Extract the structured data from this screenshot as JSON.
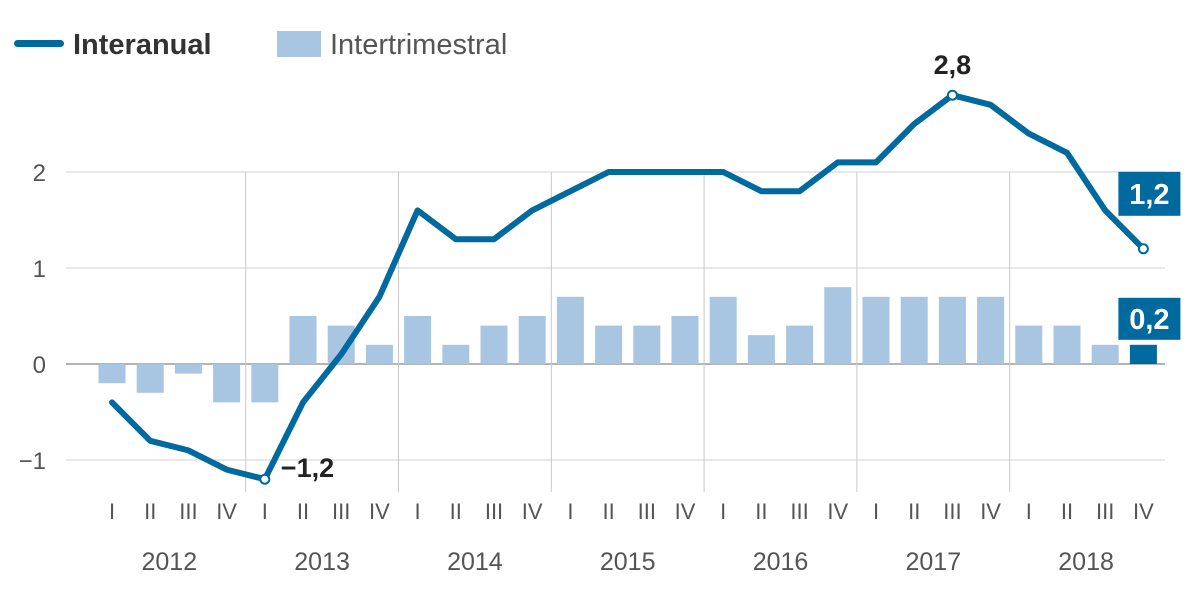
{
  "chart_data": {
    "type": "bar",
    "legend_position": "top-left",
    "series": [
      {
        "name": "Interanual",
        "type": "line",
        "color": "#00699e",
        "values": [
          -0.4,
          -0.8,
          -0.9,
          -1.1,
          -1.2,
          -0.4,
          0.1,
          0.7,
          1.6,
          1.3,
          1.3,
          1.6,
          1.8,
          2.0,
          2.0,
          2.0,
          2.0,
          1.8,
          1.8,
          2.1,
          2.1,
          2.5,
          2.8,
          2.7,
          2.4,
          2.2,
          1.6,
          1.2
        ]
      },
      {
        "name": "Intertrimestral",
        "type": "bar",
        "color": "#a8c6e1",
        "highlight_color": "#00699e",
        "values": [
          -0.2,
          -0.3,
          -0.1,
          -0.4,
          -0.4,
          0.5,
          0.4,
          0.2,
          0.5,
          0.2,
          0.4,
          0.5,
          0.7,
          0.4,
          0.4,
          0.5,
          0.7,
          0.3,
          0.4,
          0.8,
          0.7,
          0.7,
          0.7,
          0.7,
          0.4,
          0.4,
          0.2,
          0.2
        ]
      }
    ],
    "quarter_labels": [
      "I",
      "II",
      "III",
      "IV",
      "I",
      "II",
      "III",
      "IV",
      "I",
      "II",
      "III",
      "IV",
      "I",
      "II",
      "III",
      "IV",
      "I",
      "II",
      "III",
      "IV",
      "I",
      "II",
      "III",
      "IV",
      "I",
      "II",
      "III",
      "IV"
    ],
    "years": [
      "2012",
      "2013",
      "2014",
      "2015",
      "2016",
      "2017",
      "2018"
    ],
    "y_ticks": [
      {
        "value": 2,
        "label": "2"
      },
      {
        "value": 1,
        "label": "1"
      },
      {
        "value": 0,
        "label": "0"
      },
      {
        "value": -1,
        "label": "−1"
      }
    ],
    "ylim": [
      -1.4,
      3.0
    ],
    "grid": true,
    "annotations": {
      "min_line": {
        "index": 4,
        "label": "−1,2"
      },
      "max_line": {
        "index": 22,
        "label": "2,8"
      },
      "last_line": {
        "index": 27,
        "label": "1,2"
      },
      "last_bar": {
        "index": 27,
        "label": "0,2"
      }
    },
    "title": "",
    "xlabel": "",
    "ylabel": ""
  }
}
